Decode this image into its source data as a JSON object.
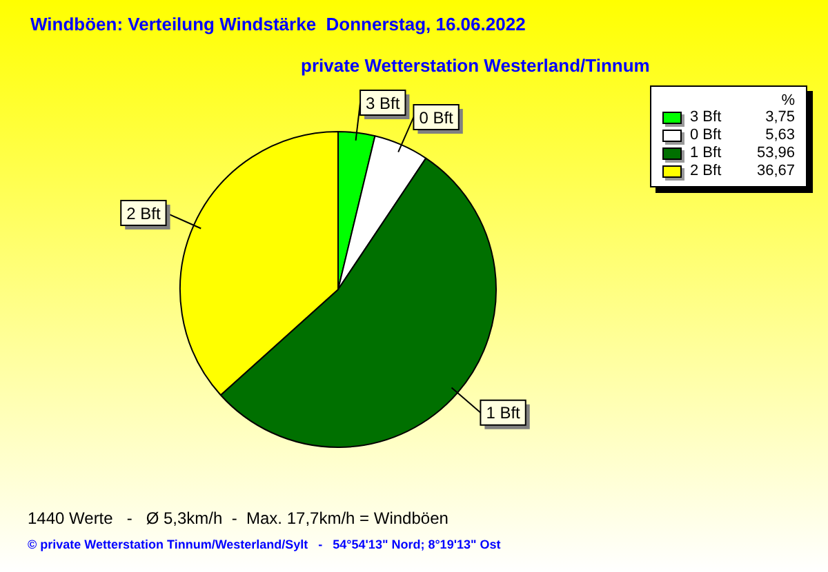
{
  "chart_data": {
    "type": "pie",
    "title": "Windböen: Verteilung Windstärke  Donnerstag, 16.06.2022",
    "subtitle": "private Wetterstation Westerland/Tinnum",
    "legend_title": "%",
    "categories": [
      "3 Bft",
      "0 Bft",
      "1 Bft",
      "2 Bft"
    ],
    "values": [
      3.75,
      5.63,
      53.96,
      36.67
    ],
    "value_labels": [
      "3,75",
      "5,63",
      "53,96",
      "36,67"
    ],
    "colors": [
      "#00ff00",
      "#ffffff",
      "#007000",
      "#ffff00"
    ],
    "legend": "top right",
    "annotations": [
      "1440 Werte   -   Ø 5,3km/h  -  Max. 17,7km/h = Windböen",
      "© private Wetterstation Tinnum/Westerland/Sylt   -   54°54'13\" Nord; 8°19'13\" Ost"
    ]
  }
}
